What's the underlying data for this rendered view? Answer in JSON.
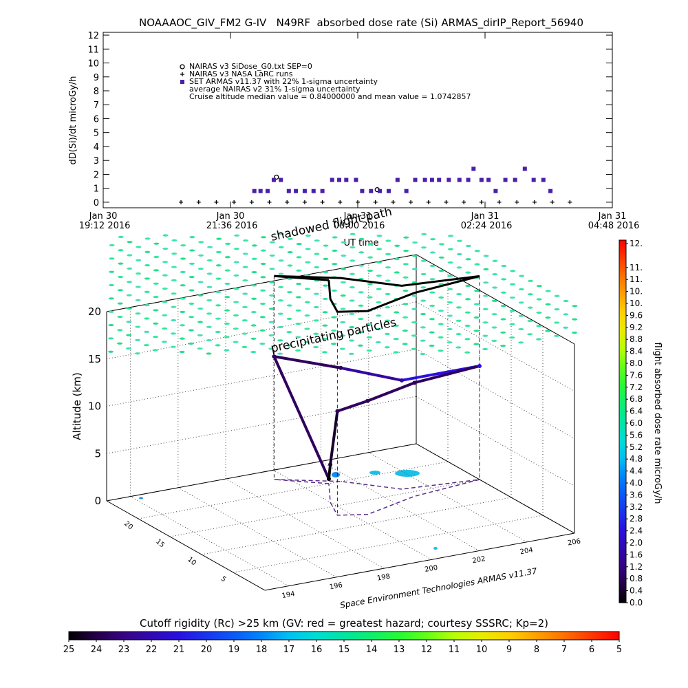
{
  "chart_data": [
    {
      "type": "scatter",
      "title": "NOAAAOC_GIV_FM2 G-IV   N49RF  absorbed dose rate (Si) ARMAS_dirIP_Report_56940",
      "ylabel": "dD(Si)/dt microGy/h",
      "xlabel": "UT time",
      "xlim": [
        "2016-01-30 19:12",
        "2016-01-31 04:48"
      ],
      "xticks": [
        {
          "value": "2016-01-30 19:12",
          "label": "Jan 30\n19:12 2016"
        },
        {
          "value": "2016-01-30 21:36",
          "label": "Jan 30\n21:36 2016"
        },
        {
          "value": "2016-01-31 00:00",
          "label": "Jan 31\n00:00 2016"
        },
        {
          "value": "2016-01-31 02:24",
          "label": "Jan 31\n02:24 2016"
        },
        {
          "value": "2016-01-31 04:48",
          "label": "Jan 31\n04:48 2016"
        }
      ],
      "ylim": [
        -0.4,
        12.2
      ],
      "yticks": [
        0,
        1,
        2,
        3,
        4,
        5,
        6,
        7,
        8,
        9,
        10,
        11,
        12
      ],
      "series": [
        {
          "name": "NAIRAS v3 SiDose_G0.txt SEP=0",
          "color": "#000000",
          "marker": "circle",
          "x": [
            "2016-01-30 22:28",
            "2016-01-31 00:22"
          ],
          "values": [
            1.8,
            0.9
          ]
        },
        {
          "name": "NAIRAS v3 NASA LaRC runs",
          "color": "#000000",
          "marker": "plus",
          "x": [
            "2016-01-30 20:40",
            "2016-01-30 21:00",
            "2016-01-30 21:20",
            "2016-01-30 21:40",
            "2016-01-30 22:00",
            "2016-01-30 22:20",
            "2016-01-30 22:40",
            "2016-01-30 23:00",
            "2016-01-30 23:20",
            "2016-01-30 23:40",
            "2016-01-31 00:00",
            "2016-01-31 00:20",
            "2016-01-31 00:40",
            "2016-01-31 01:00",
            "2016-01-31 01:20",
            "2016-01-31 01:40",
            "2016-01-31 02:00",
            "2016-01-31 02:20",
            "2016-01-31 02:40",
            "2016-01-31 03:00",
            "2016-01-31 03:20",
            "2016-01-31 03:40",
            "2016-01-31 04:00"
          ],
          "values": [
            0,
            0,
            0,
            0,
            0,
            0,
            0,
            0,
            0,
            0,
            0,
            0,
            0,
            0,
            0,
            0,
            0,
            0,
            0,
            0,
            0,
            0,
            0
          ]
        },
        {
          "name": "SET ARMAS v11.37 with 22% 1-sigma uncertainty",
          "color": "#4b1fa8",
          "marker": "square",
          "x": [
            "2016-01-30 22:03",
            "2016-01-30 22:10",
            "2016-01-30 22:18",
            "2016-01-30 22:25",
            "2016-01-30 22:33",
            "2016-01-30 22:42",
            "2016-01-30 22:50",
            "2016-01-30 23:00",
            "2016-01-30 23:10",
            "2016-01-30 23:20",
            "2016-01-30 23:31",
            "2016-01-30 23:39",
            "2016-01-30 23:47",
            "2016-01-30 23:58",
            "2016-01-31 00:05",
            "2016-01-31 00:15",
            "2016-01-31 00:25",
            "2016-01-31 00:35",
            "2016-01-31 00:45",
            "2016-01-31 00:55",
            "2016-01-31 01:05",
            "2016-01-31 01:16",
            "2016-01-31 01:24",
            "2016-01-31 01:32",
            "2016-01-31 01:43",
            "2016-01-31 01:55",
            "2016-01-31 02:05",
            "2016-01-31 02:11",
            "2016-01-31 02:20",
            "2016-01-31 02:28",
            "2016-01-31 02:36",
            "2016-01-31 02:47",
            "2016-01-31 02:58",
            "2016-01-31 03:09",
            "2016-01-31 03:19",
            "2016-01-31 03:30",
            "2016-01-31 03:38"
          ],
          "values": [
            0.8,
            0.8,
            0.8,
            1.6,
            1.6,
            0.8,
            0.8,
            0.8,
            0.8,
            0.8,
            1.6,
            1.6,
            1.6,
            1.6,
            0.8,
            0.8,
            0.8,
            0.8,
            1.6,
            0.8,
            1.6,
            1.6,
            1.6,
            1.6,
            1.6,
            1.6,
            1.6,
            2.4,
            1.6,
            1.6,
            0.8,
            1.6,
            1.6,
            2.4,
            1.6,
            1.6,
            0.8
          ]
        }
      ],
      "annotations": [
        "average NAIRAS v2 31% 1-sigma uncertainty",
        "Cruise altitude median value = 0.84000000 and mean value = 1.0742857"
      ]
    },
    {
      "type": "trajectory3d",
      "zlabel": "Altitude (km)",
      "annotations": [
        "shadowed flight path",
        "precipitating particles",
        "Space Environment Technologies ARMAS v11.37"
      ],
      "xlim": [
        193,
        206
      ],
      "xticks": [
        194,
        196,
        198,
        200,
        202,
        204,
        206
      ],
      "ylim": [
        0,
        25
      ],
      "yticks": [
        5,
        10,
        15,
        20
      ],
      "zlim": [
        0,
        20
      ],
      "zticks": [
        0,
        5,
        10,
        15,
        20
      ],
      "lon": [
        201,
        199.5,
        201.5,
        203,
        206,
        203,
        200.5,
        199.5,
        200,
        201
      ],
      "lat": [
        20,
        23,
        20,
        16,
        15,
        14,
        12,
        13,
        16,
        20
      ],
      "alt": [
        0.5,
        13,
        12,
        11.5,
        12,
        12,
        12,
        11,
        4,
        0.5
      ],
      "dose": [
        0,
        0.8,
        0.8,
        1.6,
        2.4,
        0.8,
        0.8,
        0.8,
        0.4,
        0
      ]
    },
    {
      "type": "colorbar",
      "ylabel": "flight absorbed dose rate microGy/h",
      "ylim": [
        0,
        12
      ],
      "yticks": [
        {
          "value": 0,
          "label": "0.0"
        },
        0.4,
        0.8,
        1.2,
        1.6,
        {
          "value": 2,
          "label": "2.0"
        },
        2.4,
        2.8,
        3.2,
        3.6,
        {
          "value": 4,
          "label": "4.0"
        },
        4.4,
        4.8,
        5.2,
        5.6,
        {
          "value": 6,
          "label": "6.0"
        },
        6.4,
        6.8,
        7.2,
        7.6,
        {
          "value": 8,
          "label": "8.0"
        },
        8.4,
        8.8,
        9.2,
        9.6,
        {
          "value": 10,
          "label": "10."
        },
        {
          "value": 10.4,
          "label": "10."
        },
        {
          "value": 10.8,
          "label": "11."
        },
        {
          "value": 11.2,
          "label": "11."
        },
        {
          "value": 12,
          "label": "12."
        }
      ]
    },
    {
      "type": "colorbar",
      "title": "Cutoff rigidity (Rc) >25 km (GV: red = greatest hazard; courtesy SSSRC; Kp=2)",
      "xlim": [
        25,
        5
      ],
      "xticks": [
        25,
        24,
        23,
        22,
        21,
        20,
        19,
        18,
        17,
        16,
        15,
        14,
        13,
        12,
        11,
        10,
        9,
        8,
        7,
        6,
        5
      ]
    }
  ]
}
